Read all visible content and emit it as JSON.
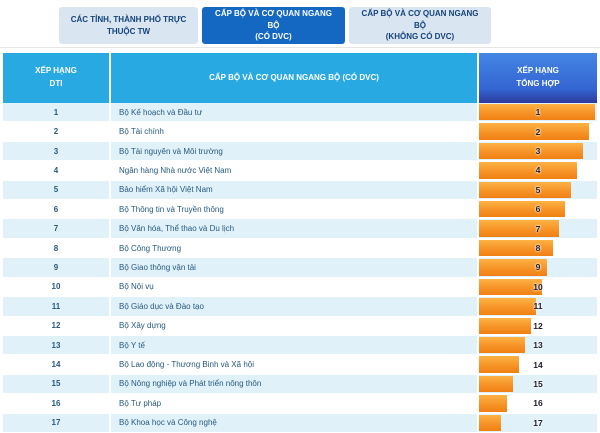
{
  "tabs": [
    {
      "label": "CÁC TỈNH, THÀNH PHỐ TRỰC\nTHUỘC TW",
      "active": false
    },
    {
      "label": "CẤP BỘ VÀ CƠ QUAN NGANG BỘ\n(CÓ DVC)",
      "active": true
    },
    {
      "label": "CẤP BỘ VÀ CƠ QUAN NGANG BỘ\n(KHÔNG CÓ DVC)",
      "active": false
    }
  ],
  "table": {
    "header": {
      "col1": "XẾP HẠNG\nDTI",
      "col2": "CẤP BỘ VÀ CƠ QUAN NGANG BỘ (CÓ DVC)",
      "col3": "XẾP HẠNG\nTỔNG HỢP"
    },
    "rows": [
      {
        "rank_dti": "1",
        "name": "Bộ Kế hoạch và Đầu tư",
        "rank_overall": "1",
        "bar_pct": 98
      },
      {
        "rank_dti": "2",
        "name": "Bộ Tài chính",
        "rank_overall": "2",
        "bar_pct": 93
      },
      {
        "rank_dti": "3",
        "name": "Bộ Tài nguyên và Môi trường",
        "rank_overall": "3",
        "bar_pct": 88
      },
      {
        "rank_dti": "4",
        "name": "Ngân hàng Nhà nước Việt Nam",
        "rank_overall": "4",
        "bar_pct": 83
      },
      {
        "rank_dti": "5",
        "name": "Bảo hiểm Xã hội Việt Nam",
        "rank_overall": "5",
        "bar_pct": 78
      },
      {
        "rank_dti": "6",
        "name": "Bộ Thông tin và Truyền thông",
        "rank_overall": "6",
        "bar_pct": 73
      },
      {
        "rank_dti": "7",
        "name": "Bộ Văn hóa, Thể thao và Du lịch",
        "rank_overall": "7",
        "bar_pct": 68
      },
      {
        "rank_dti": "8",
        "name": "Bộ Công Thương",
        "rank_overall": "8",
        "bar_pct": 63
      },
      {
        "rank_dti": "9",
        "name": "Bộ Giao thông vận tải",
        "rank_overall": "9",
        "bar_pct": 58
      },
      {
        "rank_dti": "10",
        "name": "Bộ Nội vụ",
        "rank_overall": "10",
        "bar_pct": 53
      },
      {
        "rank_dti": "11",
        "name": "Bộ Giáo dục và Đào tạo",
        "rank_overall": "11",
        "bar_pct": 48
      },
      {
        "rank_dti": "12",
        "name": "Bộ Xây dựng",
        "rank_overall": "12",
        "bar_pct": 44
      },
      {
        "rank_dti": "13",
        "name": "Bộ Y tế",
        "rank_overall": "13",
        "bar_pct": 39
      },
      {
        "rank_dti": "14",
        "name": "Bộ Lao động - Thương Binh và Xã hội",
        "rank_overall": "14",
        "bar_pct": 34
      },
      {
        "rank_dti": "15",
        "name": "Bộ Nông nghiệp và Phát triển nông thôn",
        "rank_overall": "15",
        "bar_pct": 29
      },
      {
        "rank_dti": "16",
        "name": "Bộ Tư pháp",
        "rank_overall": "16",
        "bar_pct": 24
      },
      {
        "rank_dti": "17",
        "name": "Bộ Khoa học và Công nghệ",
        "rank_overall": "17",
        "bar_pct": 19
      }
    ]
  },
  "chart_data": {
    "type": "bar",
    "orientation": "horizontal",
    "title": "XẾP HẠNG TỔNG HỢP — CẤP BỘ VÀ CƠ QUAN NGANG BỘ (CÓ DVC)",
    "categories": [
      "Bộ Kế hoạch và Đầu tư",
      "Bộ Tài chính",
      "Bộ Tài nguyên và Môi trường",
      "Ngân hàng Nhà nước Việt Nam",
      "Bảo hiểm Xã hội Việt Nam",
      "Bộ Thông tin và Truyền thông",
      "Bộ Văn hóa, Thể thao và Du lịch",
      "Bộ Công Thương",
      "Bộ Giao thông vận tải",
      "Bộ Nội vụ",
      "Bộ Giáo dục và Đào tạo",
      "Bộ Xây dựng",
      "Bộ Y tế",
      "Bộ Lao động - Thương Binh và Xã hội",
      "Bộ Nông nghiệp và Phát triển nông thôn",
      "Bộ Tư pháp",
      "Bộ Khoa học và Công nghệ"
    ],
    "values": [
      1,
      2,
      3,
      4,
      5,
      6,
      7,
      8,
      9,
      10,
      11,
      12,
      13,
      14,
      15,
      16,
      17
    ],
    "bar_length_pct": [
      98,
      93,
      88,
      83,
      78,
      73,
      68,
      63,
      58,
      53,
      48,
      44,
      39,
      34,
      29,
      24,
      19
    ],
    "legend_position": "none",
    "grid": false
  },
  "colors": {
    "header_cyan": "#29a9e1",
    "header_blue_top": "#4486e3",
    "header_blue_bottom": "#2c3a9c",
    "tab_active_bg": "#1568c2",
    "tab_inactive_bg": "#d9e5f1",
    "tab_inactive_text": "#14427b",
    "bar_orange_top": "#fcb344",
    "bar_orange_bottom": "#f08012",
    "row_alt_blue": "#e1f1fa",
    "row_text": "#27597e"
  }
}
